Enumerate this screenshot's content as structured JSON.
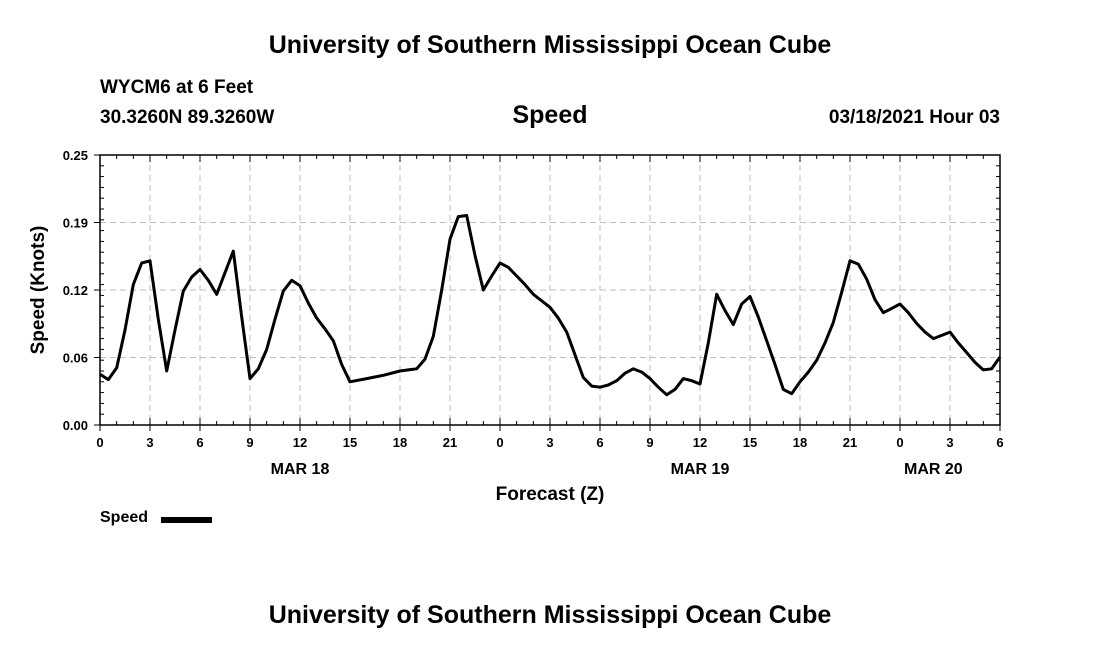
{
  "page": {
    "top_title": "University of Southern Mississippi Ocean Cube",
    "bottom_title": "University of Southern Mississippi Ocean Cube",
    "station": "WYCM6 at 6 Feet",
    "coords": "30.3260N 89.3260W",
    "datetime": "03/18/2021 Hour 03"
  },
  "legend": {
    "label": "Speed"
  },
  "chart_data": {
    "type": "line",
    "title": "Speed",
    "xlabel": "Forecast (Z)",
    "ylabel": "Speed (Knots)",
    "ylim": [
      0,
      0.25
    ],
    "xlim": [
      0,
      54
    ],
    "yticks": [
      "0.00",
      "0.06",
      "0.12",
      "0.19",
      "0.25"
    ],
    "ytick_values": [
      0,
      0.0625,
      0.125,
      0.1875,
      0.25
    ],
    "xticks": [
      {
        "x": 0,
        "label": "0"
      },
      {
        "x": 3,
        "label": "3"
      },
      {
        "x": 6,
        "label": "6"
      },
      {
        "x": 9,
        "label": "9"
      },
      {
        "x": 12,
        "label": "12"
      },
      {
        "x": 15,
        "label": "15"
      },
      {
        "x": 18,
        "label": "18"
      },
      {
        "x": 21,
        "label": "21"
      },
      {
        "x": 24,
        "label": "0"
      },
      {
        "x": 27,
        "label": "3"
      },
      {
        "x": 30,
        "label": "6"
      },
      {
        "x": 33,
        "label": "9"
      },
      {
        "x": 36,
        "label": "12"
      },
      {
        "x": 39,
        "label": "15"
      },
      {
        "x": 42,
        "label": "18"
      },
      {
        "x": 45,
        "label": "21"
      },
      {
        "x": 48,
        "label": "0"
      },
      {
        "x": 51,
        "label": "3"
      },
      {
        "x": 54,
        "label": "6"
      }
    ],
    "date_labels": [
      {
        "x": 12,
        "label": "MAR 18"
      },
      {
        "x": 36,
        "label": "MAR 19"
      },
      {
        "x": 50,
        "label": "MAR 20"
      }
    ],
    "grid": true,
    "legend_position": "bottom-left",
    "series": [
      {
        "name": "Speed",
        "color": "#000000",
        "x": [
          0,
          0.5,
          1,
          1.5,
          2,
          2.5,
          3,
          3.5,
          4,
          4.5,
          5,
          5.5,
          6,
          6.5,
          7,
          7.5,
          8,
          8.5,
          9,
          9.5,
          10,
          10.5,
          11,
          11.5,
          12,
          12.5,
          13,
          13.5,
          14,
          14.5,
          15,
          16,
          17,
          18,
          18.5,
          19,
          19.5,
          20,
          20.5,
          21,
          21.5,
          22,
          22.5,
          23,
          23.5,
          24,
          24.5,
          25,
          25.5,
          26,
          26.5,
          27,
          27.5,
          28,
          28.5,
          29,
          29.5,
          30,
          30.5,
          31,
          31.5,
          32,
          32.5,
          33,
          33.5,
          34,
          34.5,
          35,
          35.5,
          36,
          36.5,
          37,
          37.5,
          38,
          38.5,
          39,
          39.5,
          40,
          40.5,
          41,
          41.5,
          42,
          42.5,
          43,
          43.5,
          44,
          44.5,
          45,
          45.5,
          46,
          46.5,
          47,
          47.5,
          48,
          48.5,
          49,
          49.5,
          50,
          50.5,
          51,
          51.5,
          52,
          52.5,
          53,
          53.5,
          54
        ],
        "values": [
          0.047,
          0.042,
          0.053,
          0.088,
          0.13,
          0.15,
          0.152,
          0.098,
          0.05,
          0.088,
          0.124,
          0.137,
          0.144,
          0.134,
          0.121,
          0.141,
          0.161,
          0.1,
          0.043,
          0.052,
          0.07,
          0.098,
          0.124,
          0.134,
          0.129,
          0.113,
          0.099,
          0.089,
          0.078,
          0.056,
          0.04,
          0.043,
          0.046,
          0.05,
          0.051,
          0.052,
          0.061,
          0.082,
          0.125,
          0.172,
          0.193,
          0.194,
          0.157,
          0.125,
          0.138,
          0.15,
          0.146,
          0.138,
          0.13,
          0.121,
          0.115,
          0.109,
          0.099,
          0.086,
          0.065,
          0.044,
          0.036,
          0.035,
          0.037,
          0.041,
          0.048,
          0.052,
          0.049,
          0.043,
          0.035,
          0.028,
          0.033,
          0.043,
          0.041,
          0.038,
          0.076,
          0.121,
          0.106,
          0.093,
          0.112,
          0.119,
          0.1,
          0.078,
          0.056,
          0.033,
          0.029,
          0.04,
          0.049,
          0.06,
          0.076,
          0.095,
          0.123,
          0.152,
          0.149,
          0.135,
          0.116,
          0.104,
          0.108,
          0.112,
          0.104,
          0.094,
          0.086,
          0.08,
          0.083,
          0.086,
          0.076,
          0.067,
          0.058,
          0.051,
          0.052,
          0.063
        ]
      }
    ]
  }
}
